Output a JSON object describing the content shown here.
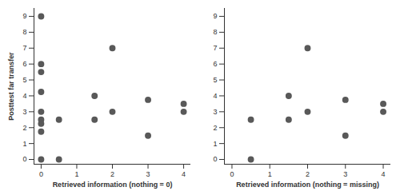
{
  "chart_data": [
    {
      "type": "scatter",
      "x_label": "Retrieved information (nothing = 0)",
      "y_label": "Posttest far transfer",
      "x": [
        0,
        0,
        0,
        0,
        0,
        0,
        0,
        0,
        0,
        0.5,
        0.5,
        1.5,
        1.5,
        2,
        2,
        3,
        3,
        4,
        4
      ],
      "values": [
        9,
        6,
        5.5,
        4.25,
        3,
        2.5,
        2.25,
        1.75,
        0,
        2.5,
        0,
        4,
        2.5,
        7,
        3,
        3.75,
        1.5,
        3.5,
        3
      ],
      "xlim": [
        -0.2,
        4.2
      ],
      "xticks": [
        0,
        1,
        2,
        3,
        4
      ],
      "ylim": [
        -0.3,
        9.5
      ],
      "yticks": [
        0,
        1,
        2,
        3,
        4,
        5,
        6,
        7,
        8,
        9
      ],
      "color": "#595959",
      "marker": "circle",
      "grid": false
    },
    {
      "type": "scatter",
      "x_label": "Retrieved information (nothing = missing)",
      "x": [
        0.5,
        0.5,
        1.5,
        1.5,
        2,
        2,
        3,
        3,
        4,
        4
      ],
      "values": [
        2.5,
        0,
        4,
        2.5,
        7,
        3,
        3.75,
        1.5,
        3.5,
        3
      ],
      "xlim": [
        -0.2,
        4.2
      ],
      "xticks": [
        0,
        1,
        2,
        3,
        4
      ],
      "ylim": [
        -0.3,
        9.5
      ],
      "yticks": [
        0,
        1,
        2,
        3,
        4,
        5,
        6,
        7,
        8,
        9
      ],
      "color": "#595959",
      "marker": "circle",
      "grid": false
    }
  ]
}
